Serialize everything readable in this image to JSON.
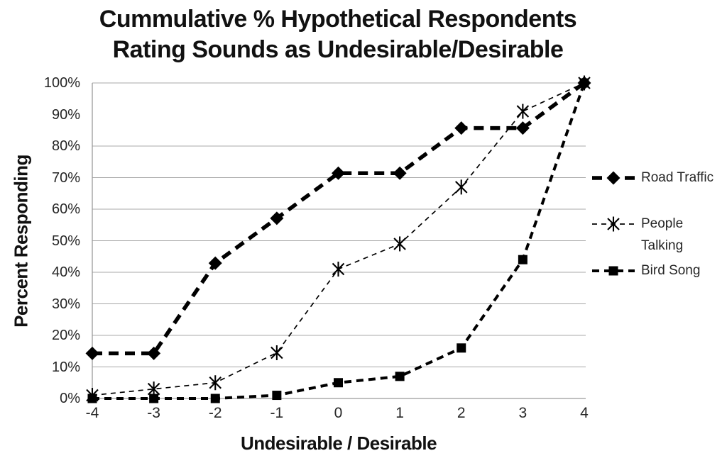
{
  "chart_data": {
    "type": "line",
    "title_lines": [
      "Cummulative % Hypothetical Respondents",
      "Rating Sounds as Undesirable/Desirable"
    ],
    "xlabel": "Undesirable / Desirable",
    "ylabel": "Percent Responding",
    "x": [
      -4,
      -3,
      -2,
      -1,
      0,
      1,
      2,
      3,
      4
    ],
    "x_ticklabels": [
      "-4",
      "-3",
      "-2",
      "-1",
      "0",
      "1",
      "2",
      "3",
      "4"
    ],
    "y_ticklabels": [
      "0%",
      "10%",
      "20%",
      "30%",
      "40%",
      "50%",
      "60%",
      "70%",
      "80%",
      "90%",
      "100%"
    ],
    "ylim": [
      0,
      100
    ],
    "grid": "horizontal, 90% gridline absent",
    "legend_position": "right",
    "series": [
      {
        "name": "Road Traffic",
        "marker": "diamond",
        "line_style": "thick-dashed",
        "values": [
          14.3,
          14.3,
          42.9,
          57.1,
          71.4,
          71.4,
          85.7,
          85.7,
          100
        ]
      },
      {
        "name": "People Talking",
        "marker": "asterisk",
        "line_style": "thin-dashed",
        "values": [
          1,
          3,
          5,
          14.5,
          41,
          49,
          67,
          91,
          100
        ]
      },
      {
        "name": "Bird Song",
        "marker": "square",
        "line_style": "medium-dashed",
        "values": [
          0,
          0,
          0,
          1,
          5,
          7,
          16,
          44,
          100
        ]
      }
    ],
    "colors": {
      "series": "#000000",
      "grid": "#a8a8a8",
      "axis": "#9a9a9a",
      "text": "#262626",
      "title": "#111111"
    }
  }
}
